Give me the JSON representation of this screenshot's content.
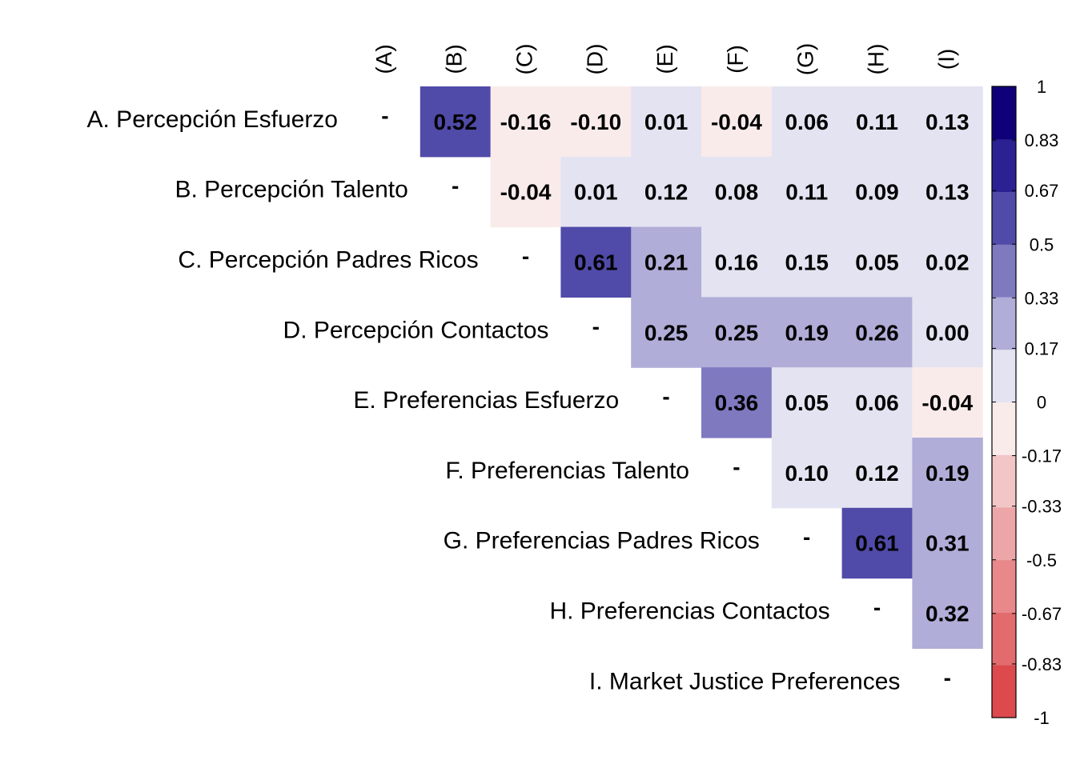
{
  "chart_data": {
    "type": "heatmap",
    "title": "",
    "xlabel": "",
    "ylabel": "",
    "row_labels": [
      "A. Percepción Esfuerzo",
      "B. Percepción Talento",
      "C. Percepción Padres Ricos",
      "D. Percepción Contactos",
      "E. Preferencias Esfuerzo",
      "F. Preferencias Talento",
      "G. Preferencias Padres Ricos",
      "H. Preferencias Contactos",
      "I. Market Justice Preferences"
    ],
    "col_labels": [
      "(A)",
      "(B)",
      "(C)",
      "(D)",
      "(E)",
      "(F)",
      "(G)",
      "(H)",
      "(I)"
    ],
    "diagonal_label": "-",
    "values": [
      [
        null,
        0.52,
        -0.16,
        -0.1,
        0.01,
        -0.04,
        0.06,
        0.11,
        0.13
      ],
      [
        null,
        null,
        -0.04,
        0.01,
        0.12,
        0.08,
        0.11,
        0.09,
        0.13
      ],
      [
        null,
        null,
        null,
        0.61,
        0.21,
        0.16,
        0.15,
        0.05,
        0.02
      ],
      [
        null,
        null,
        null,
        null,
        0.25,
        0.25,
        0.19,
        0.26,
        0.0
      ],
      [
        null,
        null,
        null,
        null,
        null,
        0.36,
        0.05,
        0.06,
        -0.04
      ],
      [
        null,
        null,
        null,
        null,
        null,
        null,
        0.1,
        0.12,
        0.19
      ],
      [
        null,
        null,
        null,
        null,
        null,
        null,
        null,
        0.61,
        0.31
      ],
      [
        null,
        null,
        null,
        null,
        null,
        null,
        null,
        null,
        0.32
      ],
      [
        null,
        null,
        null,
        null,
        null,
        null,
        null,
        null,
        null
      ]
    ],
    "value_labels": [
      [
        "",
        "0.52",
        "-0.16",
        "-0.10",
        "0.01",
        "-0.04",
        "0.06",
        "0.11",
        "0.13"
      ],
      [
        "",
        "",
        "-0.04",
        "0.01",
        "0.12",
        "0.08",
        "0.11",
        "0.09",
        "0.13"
      ],
      [
        "",
        "",
        "",
        "0.61",
        "0.21",
        "0.16",
        "0.15",
        "0.05",
        "0.02"
      ],
      [
        "",
        "",
        "",
        "",
        "0.25",
        "0.25",
        "0.19",
        "0.26",
        "0.00"
      ],
      [
        "",
        "",
        "",
        "",
        "",
        "0.36",
        "0.05",
        "0.06",
        "-0.04"
      ],
      [
        "",
        "",
        "",
        "",
        "",
        "",
        "0.10",
        "0.12",
        "0.19"
      ],
      [
        "",
        "",
        "",
        "",
        "",
        "",
        "",
        "0.61",
        "0.31"
      ],
      [
        "",
        "",
        "",
        "",
        "",
        "",
        "",
        "",
        "0.32"
      ],
      [
        "",
        "",
        "",
        "",
        "",
        "",
        "",
        "",
        ""
      ]
    ],
    "color_scale": {
      "min": -1,
      "max": 1,
      "breaks": [
        -1,
        -0.83,
        -0.67,
        -0.5,
        -0.33,
        -0.17,
        0,
        0.17,
        0.33,
        0.5,
        0.67,
        0.83,
        1
      ],
      "tick_labels": [
        "-1",
        "-0.83",
        "-0.67",
        "-0.5",
        "-0.33",
        "-0.17",
        "0",
        "0.17",
        "0.33",
        "0.5",
        "0.67",
        "0.83",
        "1"
      ],
      "bin_colors": [
        "#dc4a4d",
        "#e26b6d",
        "#e8888a",
        "#eda6a7",
        "#f3c6c6",
        "#faebeb",
        "#e4e3f1",
        "#b0add8",
        "#7f79c0",
        "#504aa8",
        "#2c2193",
        "#0f0079"
      ]
    },
    "legend_position": "right",
    "grid": false
  }
}
